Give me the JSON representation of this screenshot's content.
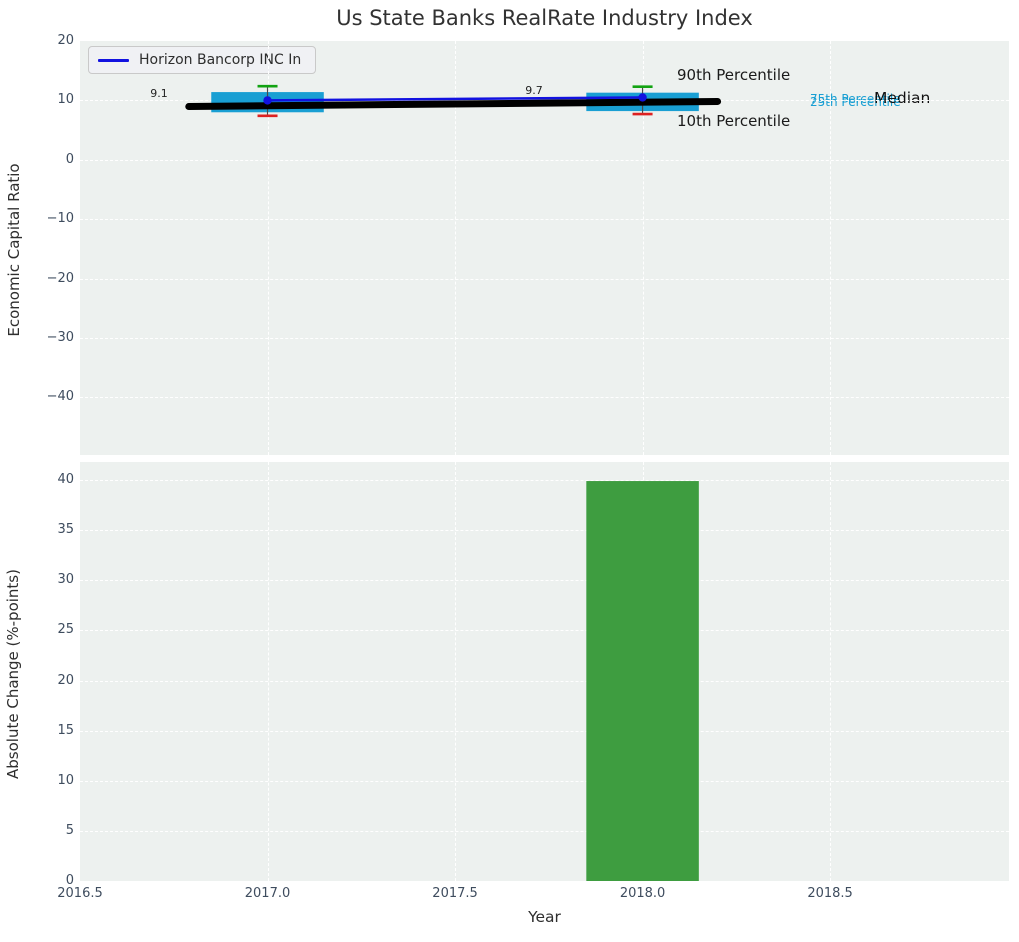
{
  "title": "Us State Banks RealRate Industry Index",
  "legend": {
    "label": "Horizon Bancorp INC In"
  },
  "annotations": {
    "p90": "90th Percentile",
    "p10": "10th Percentile",
    "p75": "75th Percentile",
    "p25": "25th Percentile",
    "median": "Median",
    "value_2017": "9.1",
    "value_2018": "9.7"
  },
  "colors": {
    "company_blue": "#1212e0",
    "box_cyan": "#199fd3",
    "bar_green": "#3e9d40",
    "cap_green": "#12a312",
    "cap_red": "#dd2222",
    "median_black": "#000000",
    "whisker_gray": "#4a4a4a",
    "plot_bg": "#edf1ef",
    "tick_color": "#3e4c5e"
  },
  "chart_data": [
    {
      "type": "box",
      "title": "Us State Banks RealRate Industry Index",
      "ylabel": "Economic Capital Ratio",
      "xlim": [
        2016.5,
        2018.977
      ],
      "ylim": [
        -49.7,
        20
      ],
      "yticks": [
        20,
        10,
        0,
        -10,
        -20,
        -30,
        -40
      ],
      "ytick_labels": [
        "20",
        "10",
        "0",
        "−10",
        "−20",
        "−30",
        "−40"
      ],
      "xgrid": [
        2017,
        2017.5,
        2018,
        2018.5
      ],
      "grid": true,
      "legend_position": "upper left",
      "boxes": [
        {
          "x": 2017,
          "width": 0.3,
          "p10": 7.4,
          "p25": 8.0,
          "median": 9.1,
          "p75": 11.4,
          "p90": 12.4
        },
        {
          "x": 2018,
          "width": 0.3,
          "p10": 7.7,
          "p25": 8.2,
          "median": 9.7,
          "p75": 11.3,
          "p90": 12.3
        }
      ],
      "median_line": {
        "x": [
          2016.79,
          2018.2
        ],
        "y": [
          8.97,
          9.82
        ]
      },
      "series": [
        {
          "name": "Horizon Bancorp INC In",
          "x": [
            2017,
            2018
          ],
          "y": [
            10.0,
            10.5
          ]
        }
      ],
      "value_labels": [
        {
          "x": 2017,
          "text": "9.1"
        },
        {
          "x": 2018,
          "text": "9.7"
        }
      ]
    },
    {
      "type": "bar",
      "ylabel": "Absolute Change (%-points)",
      "xlabel": "Year",
      "xlim": [
        2016.5,
        2018.977
      ],
      "ylim": [
        0,
        41.8
      ],
      "yticks": [
        40,
        35,
        30,
        25,
        20,
        15,
        10,
        5,
        0
      ],
      "ytick_labels": [
        "40",
        "35",
        "30",
        "25",
        "20",
        "15",
        "10",
        "5",
        "0"
      ],
      "xticks": [
        2016.5,
        2017,
        2017.5,
        2018,
        2018.5
      ],
      "xtick_labels": [
        "2016.5",
        "2017.0",
        "2017.5",
        "2018.0",
        "2018.5"
      ],
      "xgrid": [
        2017,
        2017.5,
        2018,
        2018.5
      ],
      "categories": [
        2018
      ],
      "values": [
        39.9
      ],
      "bar_width": 0.3,
      "grid": true
    }
  ]
}
